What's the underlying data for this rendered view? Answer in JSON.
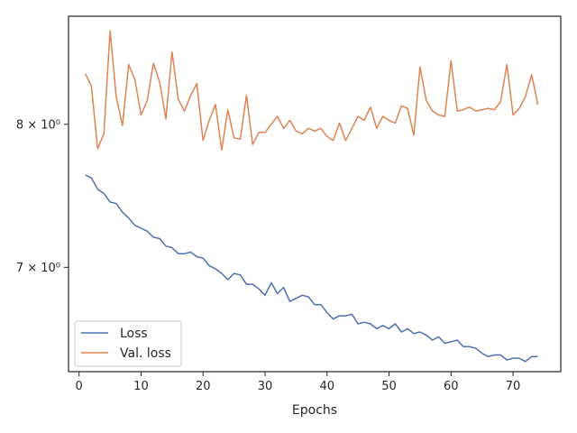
{
  "chart_data": {
    "type": "line",
    "xlabel": "Epochs",
    "ylabel": "",
    "yscale": "log",
    "xlim": [
      -1.7,
      77.7
    ],
    "ylim": [
      6.35,
      8.85
    ],
    "xticks": [
      0,
      10,
      20,
      30,
      40,
      50,
      60,
      70
    ],
    "yticks": [
      {
        "value": 7,
        "label": "7 × 10⁰"
      },
      {
        "value": 8,
        "label": "8 × 10⁰"
      }
    ],
    "grid": false,
    "legend": "lower-left",
    "series": [
      {
        "name": "Loss",
        "color": "#4c72b0",
        "x": [
          1,
          2,
          3,
          4,
          5,
          6,
          7,
          8,
          9,
          10,
          11,
          12,
          13,
          14,
          15,
          16,
          17,
          18,
          19,
          20,
          21,
          22,
          23,
          24,
          25,
          26,
          27,
          28,
          29,
          30,
          31,
          32,
          33,
          34,
          35,
          36,
          37,
          38,
          39,
          40,
          41,
          42,
          43,
          44,
          45,
          46,
          47,
          48,
          49,
          50,
          51,
          52,
          53,
          54,
          55,
          56,
          57,
          58,
          59,
          60,
          61,
          62,
          63,
          64,
          65,
          66,
          67,
          68,
          69,
          70,
          71,
          72,
          73,
          74
        ],
        "y": [
          7.63,
          7.61,
          7.53,
          7.5,
          7.44,
          7.43,
          7.37,
          7.33,
          7.28,
          7.26,
          7.24,
          7.2,
          7.19,
          7.14,
          7.13,
          7.09,
          7.09,
          7.1,
          7.07,
          7.06,
          7.01,
          6.99,
          6.96,
          6.92,
          6.96,
          6.95,
          6.89,
          6.89,
          6.86,
          6.82,
          6.9,
          6.83,
          6.87,
          6.78,
          6.8,
          6.82,
          6.81,
          6.76,
          6.76,
          6.71,
          6.67,
          6.69,
          6.69,
          6.7,
          6.64,
          6.65,
          6.64,
          6.61,
          6.63,
          6.61,
          6.64,
          6.59,
          6.61,
          6.58,
          6.59,
          6.57,
          6.54,
          6.56,
          6.52,
          6.53,
          6.54,
          6.5,
          6.5,
          6.49,
          6.46,
          6.44,
          6.45,
          6.45,
          6.42,
          6.43,
          6.43,
          6.41,
          6.44,
          6.44
        ]
      },
      {
        "name": "Val. loss",
        "color": "#dd8452",
        "x": [
          1,
          2,
          3,
          4,
          5,
          6,
          7,
          8,
          9,
          10,
          11,
          12,
          13,
          14,
          15,
          16,
          17,
          18,
          19,
          20,
          21,
          22,
          23,
          24,
          25,
          26,
          27,
          28,
          29,
          30,
          31,
          32,
          33,
          34,
          35,
          36,
          37,
          38,
          39,
          40,
          41,
          42,
          43,
          44,
          45,
          46,
          47,
          48,
          49,
          50,
          51,
          52,
          53,
          54,
          55,
          56,
          57,
          58,
          59,
          60,
          61,
          62,
          63,
          64,
          65,
          66,
          67,
          68,
          69,
          70,
          71,
          72,
          73,
          74
        ],
        "y": [
          8.39,
          8.29,
          7.82,
          7.93,
          8.73,
          8.21,
          7.99,
          8.46,
          8.34,
          8.07,
          8.18,
          8.47,
          8.32,
          8.04,
          8.56,
          8.19,
          8.1,
          8.22,
          8.31,
          7.88,
          8.03,
          8.15,
          7.81,
          8.11,
          7.9,
          7.89,
          8.22,
          7.85,
          7.94,
          7.94,
          8.0,
          8.06,
          7.97,
          8.03,
          7.95,
          7.93,
          7.97,
          7.95,
          7.97,
          7.91,
          7.88,
          8.01,
          7.88,
          7.97,
          8.06,
          8.03,
          8.13,
          7.97,
          8.06,
          8.03,
          8.01,
          8.14,
          8.12,
          7.92,
          8.44,
          8.18,
          8.1,
          8.07,
          8.06,
          8.49,
          8.1,
          8.11,
          8.13,
          8.1,
          8.11,
          8.12,
          8.11,
          8.17,
          8.46,
          8.07,
          8.12,
          8.21,
          8.38,
          8.15
        ]
      }
    ]
  }
}
